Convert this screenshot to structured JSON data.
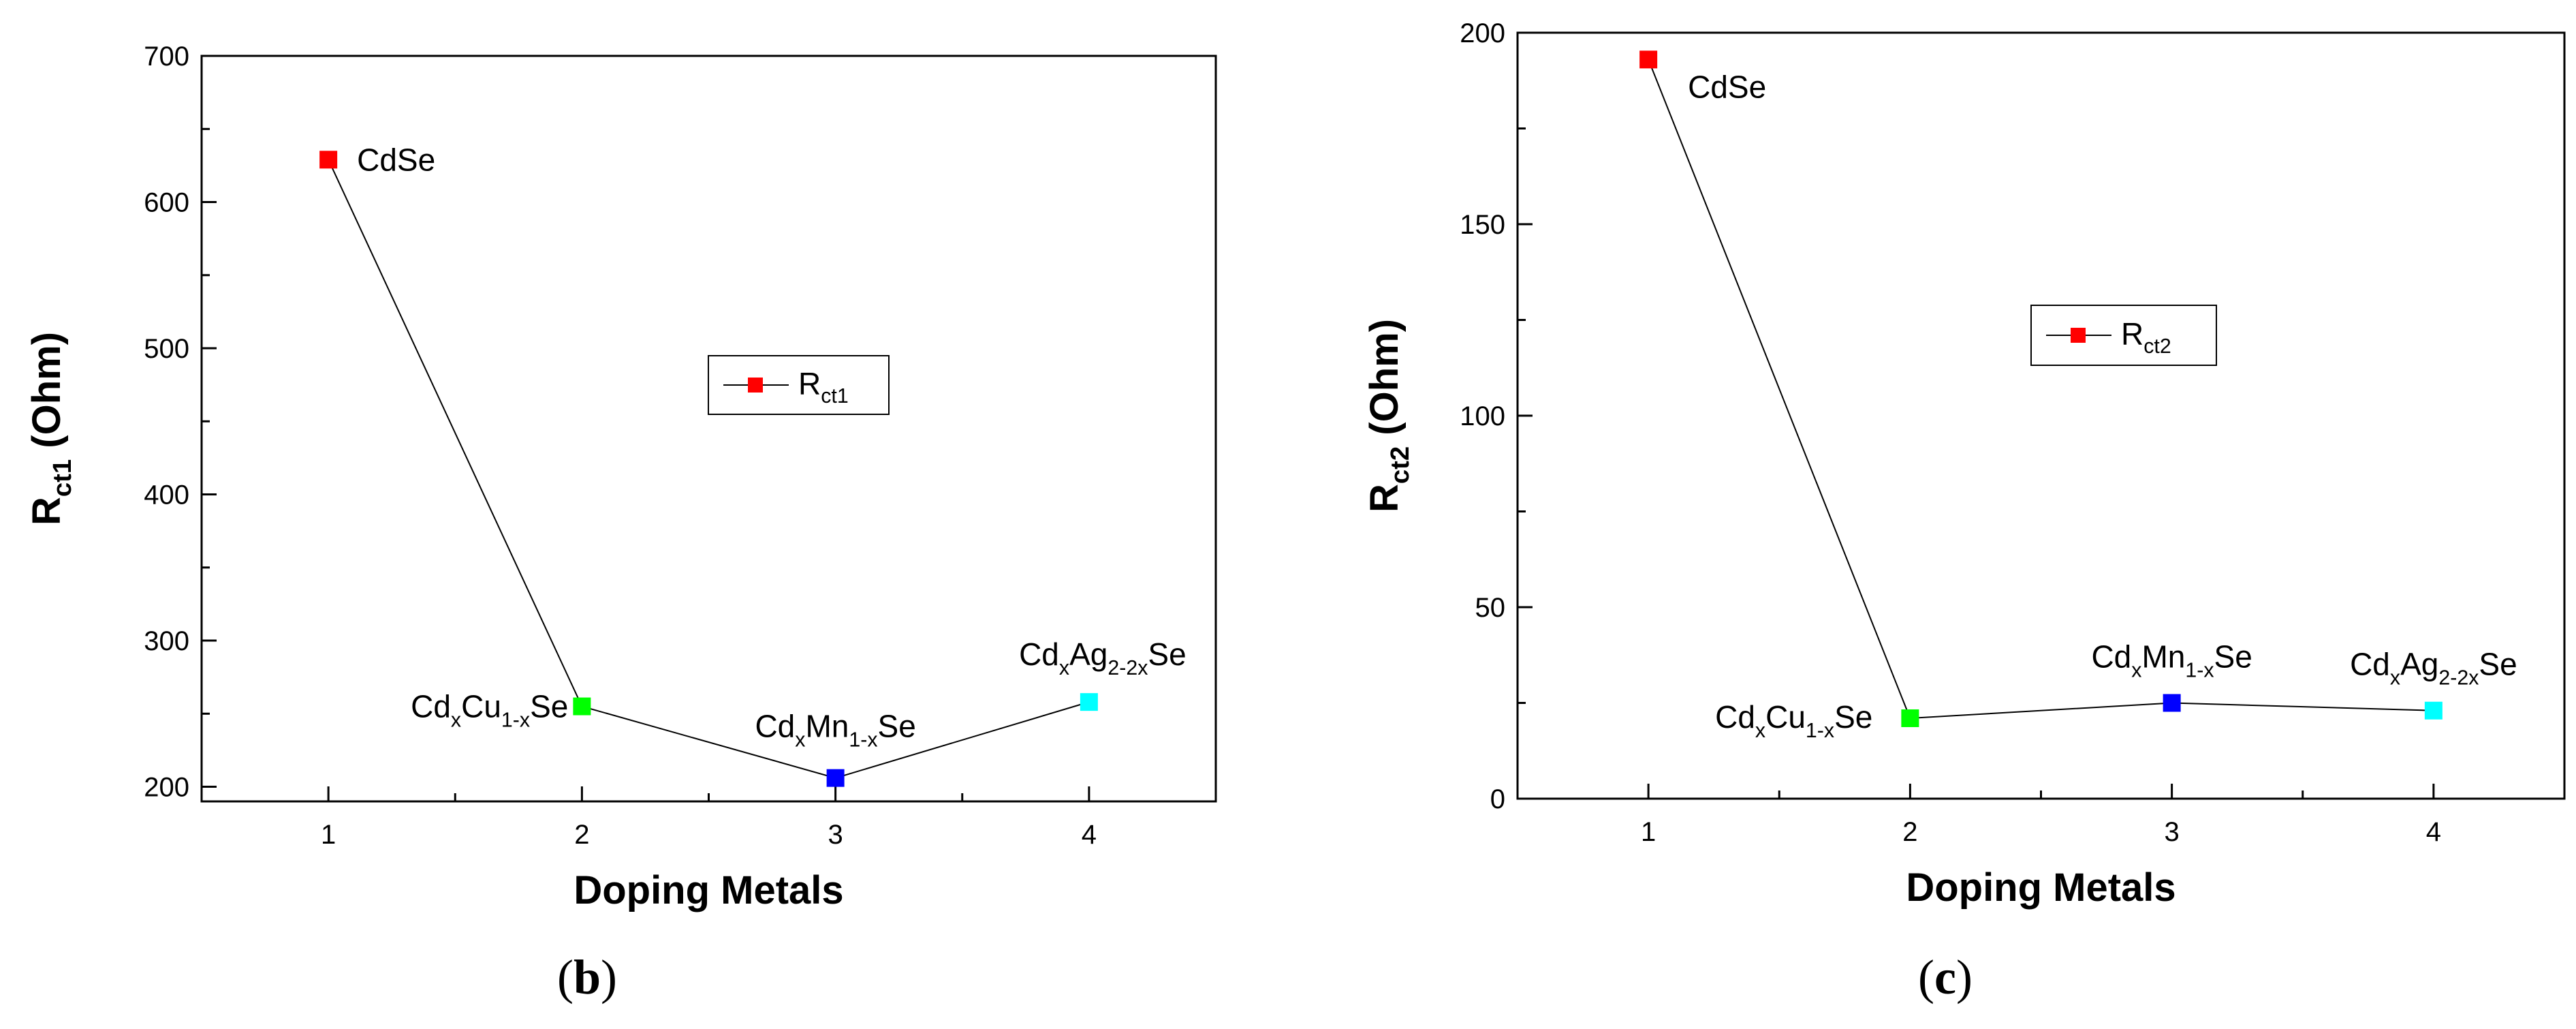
{
  "chart_data": [
    {
      "type": "line",
      "panel_label": "b",
      "xlabel": "Doping Metals",
      "ylabel": {
        "main": "R",
        "sub": "ct1",
        "rest": " (Ohm)"
      },
      "xlim": [
        0.5,
        4.5
      ],
      "ylim": [
        190,
        700
      ],
      "xticks": [
        1,
        2,
        3,
        4
      ],
      "yticks": [
        200,
        300,
        400,
        500,
        600,
        700
      ],
      "legend": {
        "main": "R",
        "sub": "ct1",
        "position": "center-right"
      },
      "series": [
        {
          "name": "Rct1",
          "x": [
            1,
            2,
            3,
            4
          ],
          "y": [
            629,
            255,
            206,
            258
          ],
          "colors": [
            "#ff0000",
            "#00ff00",
            "#0000ff",
            "#00ffff"
          ]
        }
      ],
      "annotations": [
        {
          "x": 1,
          "parts": [
            [
              "CdSe",
              ""
            ]
          ]
        },
        {
          "x": 2,
          "parts": [
            [
              "Cd",
              ""
            ],
            [
              "x",
              "sub"
            ],
            [
              "Cu",
              ""
            ],
            [
              "1-x",
              "sub"
            ],
            [
              "Se",
              ""
            ]
          ]
        },
        {
          "x": 3,
          "parts": [
            [
              "Cd",
              ""
            ],
            [
              "x",
              "sub"
            ],
            [
              "Mn",
              ""
            ],
            [
              "1-x",
              "sub"
            ],
            [
              "Se",
              ""
            ]
          ]
        },
        {
          "x": 4,
          "parts": [
            [
              "Cd",
              ""
            ],
            [
              "x",
              "sub"
            ],
            [
              "Ag",
              ""
            ],
            [
              "2-2x",
              "sub"
            ],
            [
              "Se",
              ""
            ]
          ]
        }
      ]
    },
    {
      "type": "line",
      "panel_label": "c",
      "xlabel": "Doping Metals",
      "ylabel": {
        "main": "R",
        "sub": "ct2",
        "rest": " (Ohm)"
      },
      "xlim": [
        0.5,
        4.5
      ],
      "ylim": [
        0,
        200
      ],
      "xticks": [
        1,
        2,
        3,
        4
      ],
      "yticks": [
        0,
        50,
        100,
        150,
        200
      ],
      "legend": {
        "main": "R",
        "sub": "ct2",
        "position": "center-right"
      },
      "series": [
        {
          "name": "Rct2",
          "x": [
            1,
            2,
            3,
            4
          ],
          "y": [
            193,
            21,
            25,
            23
          ],
          "colors": [
            "#ff0000",
            "#00ff00",
            "#0000ff",
            "#00ffff"
          ]
        }
      ],
      "annotations": [
        {
          "x": 1,
          "parts": [
            [
              "CdSe",
              ""
            ]
          ]
        },
        {
          "x": 2,
          "parts": [
            [
              "Cd",
              ""
            ],
            [
              "x",
              "sub"
            ],
            [
              "Cu",
              ""
            ],
            [
              "1-x",
              "sub"
            ],
            [
              "Se",
              ""
            ]
          ]
        },
        {
          "x": 3,
          "parts": [
            [
              "Cd",
              ""
            ],
            [
              "x",
              "sub"
            ],
            [
              "Mn",
              ""
            ],
            [
              "1-x",
              "sub"
            ],
            [
              "Se",
              ""
            ]
          ]
        },
        {
          "x": 4,
          "parts": [
            [
              "Cd",
              ""
            ],
            [
              "x",
              "sub"
            ],
            [
              "Ag",
              ""
            ],
            [
              "2-2x",
              "sub"
            ],
            [
              "Se",
              ""
            ]
          ]
        }
      ]
    }
  ]
}
